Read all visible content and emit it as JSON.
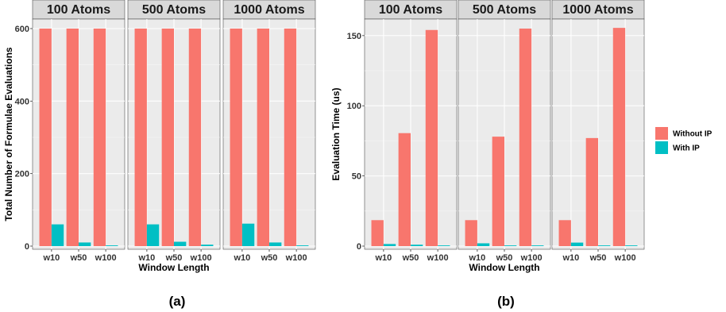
{
  "legend": {
    "position": "right",
    "items": [
      {
        "label": "Without IP",
        "color": "#F8766D"
      },
      {
        "label": "With IP",
        "color": "#00BFC4"
      }
    ]
  },
  "chart_data": [
    {
      "type": "bar",
      "caption": "(a)",
      "xlabel": "Window Length",
      "ylabel": "Total Number of Formulae Evaluations",
      "ylim": [
        0,
        600
      ],
      "yticks": [
        0,
        200,
        400,
        600
      ],
      "grid": true,
      "categories": [
        "w10",
        "w50",
        "w100"
      ],
      "facets": [
        {
          "title": "100 Atoms",
          "series": [
            {
              "name": "Without IP",
              "values": [
                600,
                600,
                600
              ]
            },
            {
              "name": "With IP",
              "values": [
                60,
                10,
                2
              ]
            }
          ]
        },
        {
          "title": "500 Atoms",
          "series": [
            {
              "name": "Without IP",
              "values": [
                600,
                600,
                600
              ]
            },
            {
              "name": "With IP",
              "values": [
                60,
                12,
                4
              ]
            }
          ]
        },
        {
          "title": "1000 Atoms",
          "series": [
            {
              "name": "Without IP",
              "values": [
                600,
                600,
                600
              ]
            },
            {
              "name": "With IP",
              "values": [
                62,
                10,
                2
              ]
            }
          ]
        }
      ]
    },
    {
      "type": "bar",
      "caption": "(b)",
      "xlabel": "Window Length",
      "ylabel": "Evaluation Time (us)",
      "ylim": [
        0,
        155
      ],
      "yticks": [
        0,
        50,
        100,
        150
      ],
      "grid": true,
      "categories": [
        "w10",
        "w50",
        "w100"
      ],
      "facets": [
        {
          "title": "100 Atoms",
          "series": [
            {
              "name": "Without IP",
              "values": [
                18.5,
                80.5,
                154
              ]
            },
            {
              "name": "With IP",
              "values": [
                1.5,
                1.0,
                0.5
              ]
            }
          ]
        },
        {
          "title": "500 Atoms",
          "series": [
            {
              "name": "Without IP",
              "values": [
                18.5,
                78,
                155
              ]
            },
            {
              "name": "With IP",
              "values": [
                2.0,
                0.5,
                0.5
              ]
            }
          ]
        },
        {
          "title": "1000 Atoms",
          "series": [
            {
              "name": "Without IP",
              "values": [
                18.5,
                77,
                155.5
              ]
            },
            {
              "name": "With IP",
              "values": [
                2.5,
                0.5,
                0.5
              ]
            }
          ]
        }
      ]
    }
  ]
}
